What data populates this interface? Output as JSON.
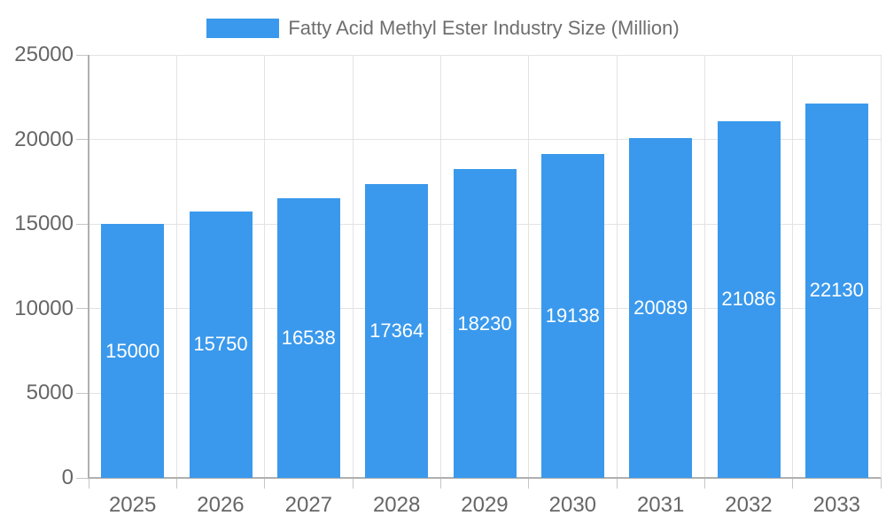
{
  "chart_data": {
    "type": "bar",
    "title": "Fatty Acid Methyl Ester Industry Size (Million)",
    "categories": [
      "2025",
      "2026",
      "2027",
      "2028",
      "2029",
      "2030",
      "2031",
      "2032",
      "2033"
    ],
    "values": [
      15000,
      15750,
      16538,
      17364,
      18230,
      19138,
      20089,
      21086,
      22130
    ],
    "xlabel": "",
    "ylabel": "",
    "ylim": [
      0,
      25000
    ],
    "yticks": [
      0,
      5000,
      10000,
      15000,
      20000,
      25000
    ],
    "grid": true,
    "legend_position": "top",
    "value_labels": "inside-center",
    "style": {
      "bar_color": "#3A99EC",
      "value_label_color": "#FFFFFF",
      "grid_color": "#E3E3E3",
      "axis_color": "#B0B0B0",
      "tick_color": "#C6C6C6",
      "tick_label_color": "#666666",
      "legend_text_color": "#6E6E6E",
      "background_color": "#FFFFFF"
    }
  }
}
